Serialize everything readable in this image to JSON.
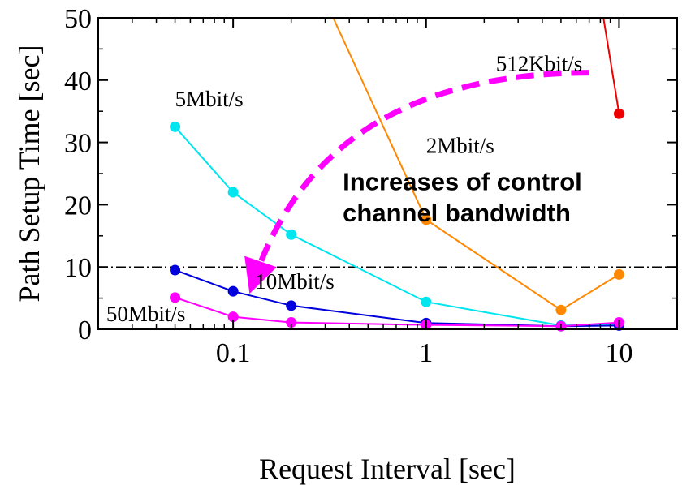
{
  "chart_data": {
    "type": "line",
    "xlabel": "Request Interval [sec]",
    "ylabel": "Path Setup Time [sec]",
    "xscale": "log",
    "xlim": [
      0.02,
      20
    ],
    "ylim": [
      0,
      50
    ],
    "xticks": [
      0.1,
      1,
      10
    ],
    "xtick_labels": [
      "0.1",
      "1",
      "10"
    ],
    "yticks": [
      0,
      10,
      20,
      30,
      40,
      50
    ],
    "ytick_labels": [
      "0",
      "10",
      "20",
      "30",
      "40",
      "50"
    ],
    "grid": false,
    "reference_line": {
      "y": 10,
      "style": "dash-dot",
      "color": "#000000"
    },
    "series": [
      {
        "name": "5Mbit/s",
        "color": "#00e5ee",
        "points": [
          [
            0.05,
            32.5
          ],
          [
            0.1,
            22.0
          ],
          [
            0.2,
            15.2
          ],
          [
            1,
            4.4
          ],
          [
            5,
            0.6
          ],
          [
            10,
            0.9
          ]
        ]
      },
      {
        "name": "10Mbit/s",
        "color": "#0000dd",
        "points": [
          [
            0.05,
            9.5
          ],
          [
            0.1,
            6.1
          ],
          [
            0.2,
            3.8
          ],
          [
            1,
            1.0
          ],
          [
            5,
            0.5
          ],
          [
            10,
            0.6
          ]
        ]
      },
      {
        "name": "50Mbit/s",
        "color": "#ff00ff",
        "points": [
          [
            0.05,
            5.1
          ],
          [
            0.1,
            2.0
          ],
          [
            0.2,
            1.1
          ],
          [
            1,
            0.7
          ],
          [
            5,
            0.5
          ],
          [
            10,
            1.1
          ]
        ]
      },
      {
        "name": "2Mbit/s",
        "color": "#ff8800",
        "points": [
          [
            0.33,
            50.0
          ],
          [
            1,
            17.6
          ],
          [
            5,
            3.1
          ],
          [
            10,
            8.8
          ]
        ],
        "marker_start": 1
      },
      {
        "name": "512Kbit/s",
        "color": "#ee0000",
        "points": [
          [
            8.3,
            50.0
          ],
          [
            10,
            34.6
          ]
        ],
        "marker_start": 1
      }
    ],
    "series_labels": [
      {
        "text": "5Mbit/s",
        "x": 0.05,
        "y": 35.8
      },
      {
        "text": "10Mbit/s",
        "x": 0.13,
        "y": 6.5
      },
      {
        "text": "50Mbit/s",
        "x": 0.022,
        "y": 1.3
      },
      {
        "text": "2Mbit/s",
        "x": 1,
        "y": 28.3
      },
      {
        "text": "512Kbit/s",
        "x": 2.3,
        "y": 41.5
      }
    ],
    "annotation": {
      "lines": [
        "Increases of control",
        "channel bandwidth"
      ],
      "x": 0.37,
      "y": 22.3,
      "line_gap": 5.0
    },
    "arrow": {
      "color": "#ff00ff",
      "from": [
        7,
        41.2
      ],
      "control": [
        0.3,
        41.0
      ],
      "to": [
        0.13,
        8.3
      ],
      "direction": "toward increasing bandwidth"
    }
  }
}
